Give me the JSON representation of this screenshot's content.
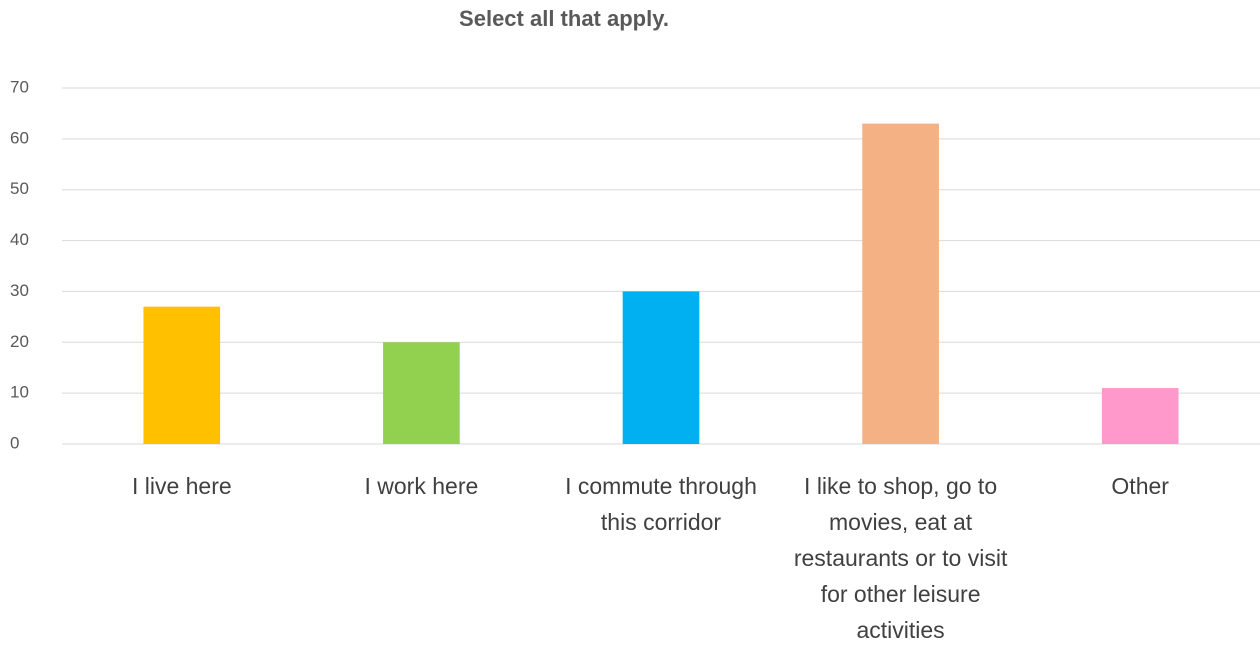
{
  "chart_data": {
    "type": "bar",
    "title": "Select all that apply.",
    "categories": [
      "I live here",
      "I work here",
      "I commute through this corridor",
      "I like to shop, go to movies, eat at restaurants or to visit for other leisure activities",
      "Other"
    ],
    "values": [
      27,
      20,
      30,
      63,
      11
    ],
    "colors": [
      "#ffc000",
      "#92d050",
      "#00b0f0",
      "#f4b183",
      "#ff99cc"
    ],
    "ylim": [
      0,
      70
    ],
    "yticks": [
      0,
      10,
      20,
      30,
      40,
      50,
      60,
      70
    ],
    "grid": true
  }
}
